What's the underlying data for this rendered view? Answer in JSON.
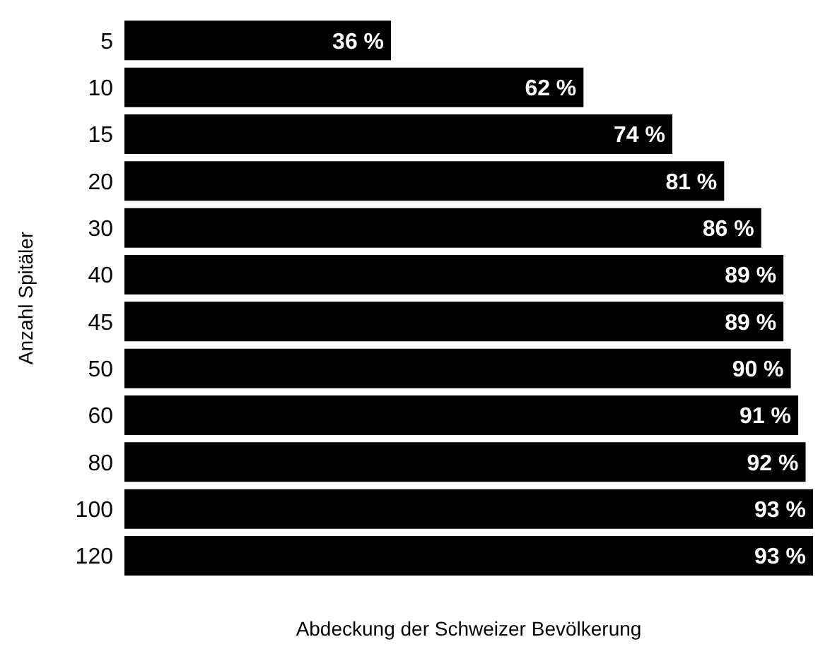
{
  "chart_data": {
    "type": "bar",
    "orientation": "horizontal",
    "xlabel": "Abdeckung der Schweizer Bevölkerung",
    "ylabel": "Anzahl Spitäler",
    "categories": [
      "5",
      "10",
      "15",
      "20",
      "30",
      "40",
      "45",
      "50",
      "60",
      "80",
      "100",
      "120"
    ],
    "values": [
      36,
      62,
      74,
      81,
      86,
      89,
      89,
      90,
      91,
      92,
      93,
      93
    ],
    "value_labels": [
      "36 %",
      "62 %",
      "74 %",
      "81 %",
      "86 %",
      "89 %",
      "89 %",
      "90 %",
      "91 %",
      "92 %",
      "93 %",
      "93 %"
    ],
    "color": "#000000",
    "tick_labels": "y"
  }
}
